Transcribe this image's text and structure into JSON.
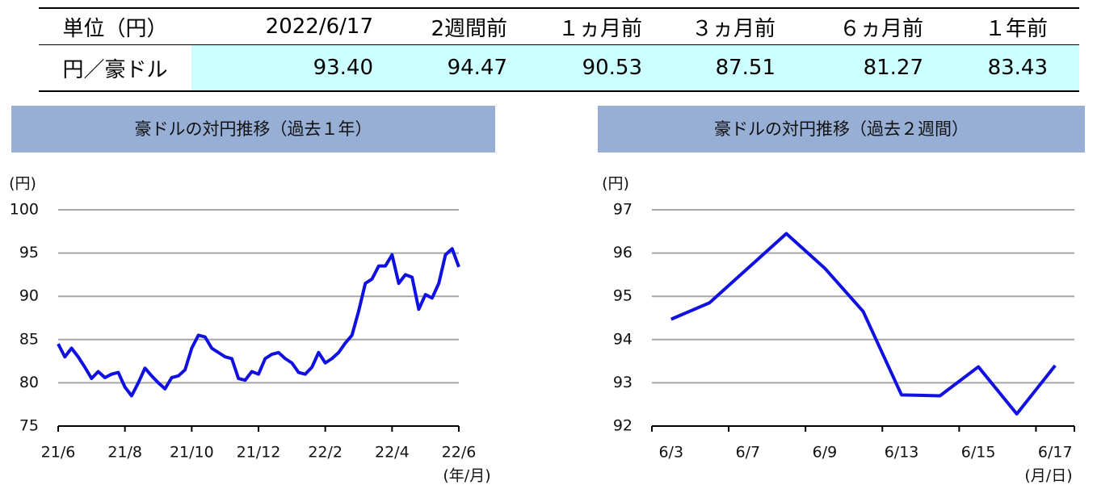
{
  "table": {
    "header": [
      "単位（円）",
      "2022/6/17",
      "2週間前",
      "１ヵ月前",
      "３ヵ月前",
      "６ヵ月前",
      "１年前"
    ],
    "rows": [
      [
        "円／豪ドル",
        "93.40",
        "94.47",
        "90.53",
        "87.51",
        "81.27",
        "83.43"
      ]
    ]
  },
  "chart_data": [
    {
      "type": "line",
      "title": "豪ドルの対円推移（過去１年）",
      "y_unit": "(円)",
      "x_unit": "(年/月)",
      "categories": [
        "21/6",
        null,
        null,
        null,
        null,
        null,
        null,
        null,
        null,
        null,
        "21/8",
        null,
        null,
        null,
        null,
        null,
        null,
        null,
        null,
        null,
        "21/10",
        null,
        null,
        null,
        null,
        null,
        null,
        null,
        null,
        null,
        "21/12",
        null,
        null,
        null,
        null,
        null,
        null,
        null,
        null,
        null,
        "22/2",
        null,
        null,
        null,
        null,
        null,
        null,
        null,
        null,
        null,
        "22/4",
        null,
        null,
        null,
        null,
        null,
        null,
        null,
        null,
        null,
        "22/6"
      ],
      "values": [
        84.5,
        83,
        84,
        83,
        81.8,
        80.5,
        81.3,
        80.6,
        81,
        81.2,
        79.5,
        78.5,
        80,
        81.7,
        80.8,
        80,
        79.3,
        80.6,
        80.8,
        81.5,
        84,
        85.5,
        85.3,
        84,
        83.5,
        83,
        82.8,
        80.5,
        80.3,
        81.3,
        81,
        82.8,
        83.3,
        83.5,
        82.8,
        82.3,
        81.2,
        81,
        81.8,
        83.5,
        82.3,
        82.8,
        83.5,
        84.6,
        85.5,
        88.3,
        91.5,
        92,
        93.5,
        93.5,
        94.8,
        91.5,
        92.5,
        92.2,
        88.5,
        90.2,
        89.8,
        91.5,
        94.8,
        95.5,
        93.4
      ],
      "color": "#1010e0",
      "ylim": [
        75,
        100
      ],
      "yticks": [
        75,
        80,
        85,
        90,
        95,
        100
      ],
      "grid": true
    },
    {
      "type": "line",
      "title": "豪ドルの対円推移（過去２週間）",
      "y_unit": "(円)",
      "x_unit": "(月/日)",
      "categories": [
        "6/3",
        null,
        "6/7",
        null,
        "6/9",
        null,
        "6/13",
        null,
        "6/15",
        null,
        "6/17"
      ],
      "values": [
        94.47,
        94.85,
        95.65,
        96.45,
        95.65,
        94.65,
        92.72,
        92.7,
        93.37,
        92.28,
        93.4
      ],
      "color": "#1010e0",
      "ylim": [
        92,
        97
      ],
      "yticks": [
        92,
        93,
        94,
        95,
        96,
        97
      ],
      "grid": true
    }
  ]
}
